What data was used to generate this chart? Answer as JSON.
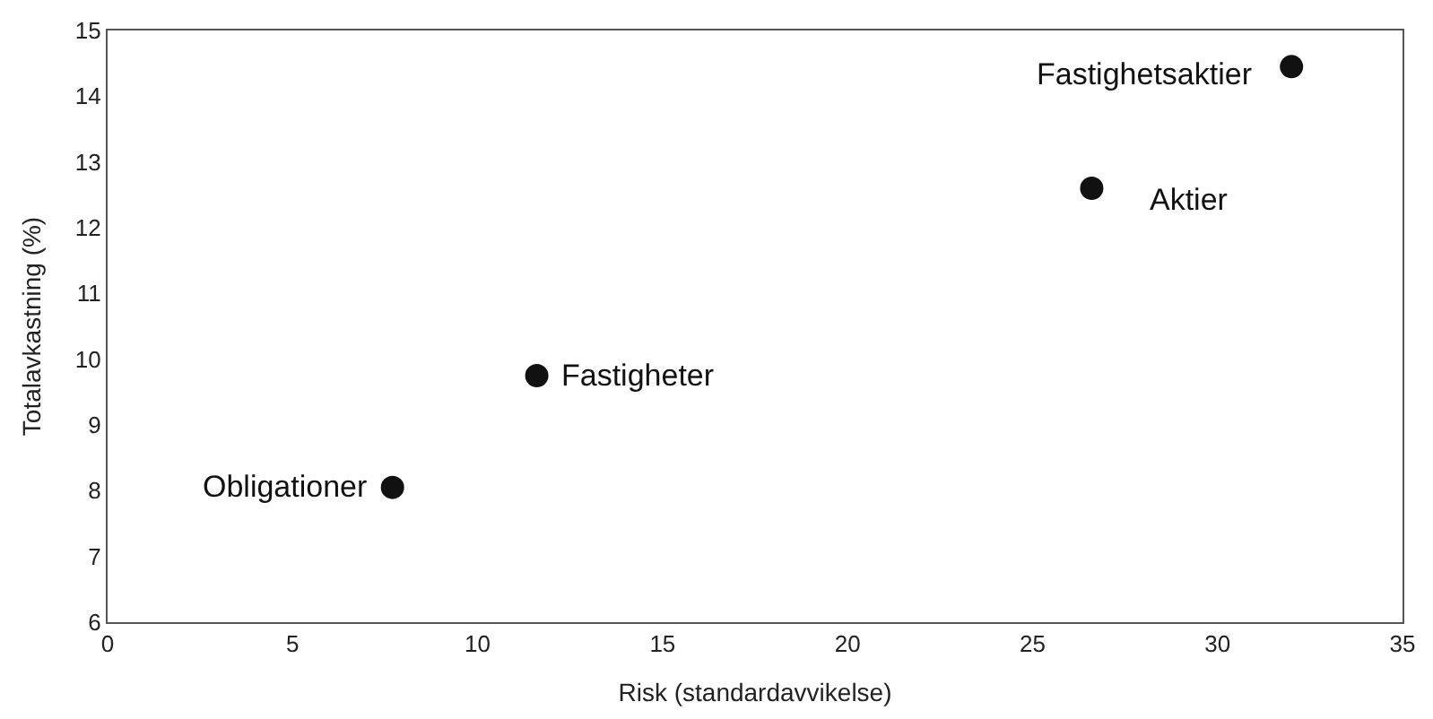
{
  "chart_data": {
    "type": "scatter",
    "xlabel": "Risk (standardavvikelse)",
    "ylabel": "Totalavkastning (%)",
    "x": [
      7.7,
      11.6,
      26.6,
      32.0
    ],
    "values": [
      8.05,
      9.75,
      12.6,
      14.45
    ],
    "color": "#111111",
    "marker": "circle",
    "xlim": [
      0,
      35
    ],
    "xticks": [
      0,
      5,
      10,
      15,
      20,
      25,
      30,
      35
    ],
    "ylim": [
      6,
      15
    ],
    "yticks": [
      6,
      7,
      8,
      9,
      10,
      11,
      12,
      13,
      14,
      15
    ],
    "annotations": [
      {
        "text": "Obligationer",
        "x": 7.7,
        "y": 8.05
      },
      {
        "text": "Fastigheter",
        "x": 11.6,
        "y": 9.75
      },
      {
        "text": "Aktier",
        "x": 26.6,
        "y": 12.6
      },
      {
        "text": "Fastighetsaktier",
        "x": 32.0,
        "y": 14.45
      }
    ]
  }
}
